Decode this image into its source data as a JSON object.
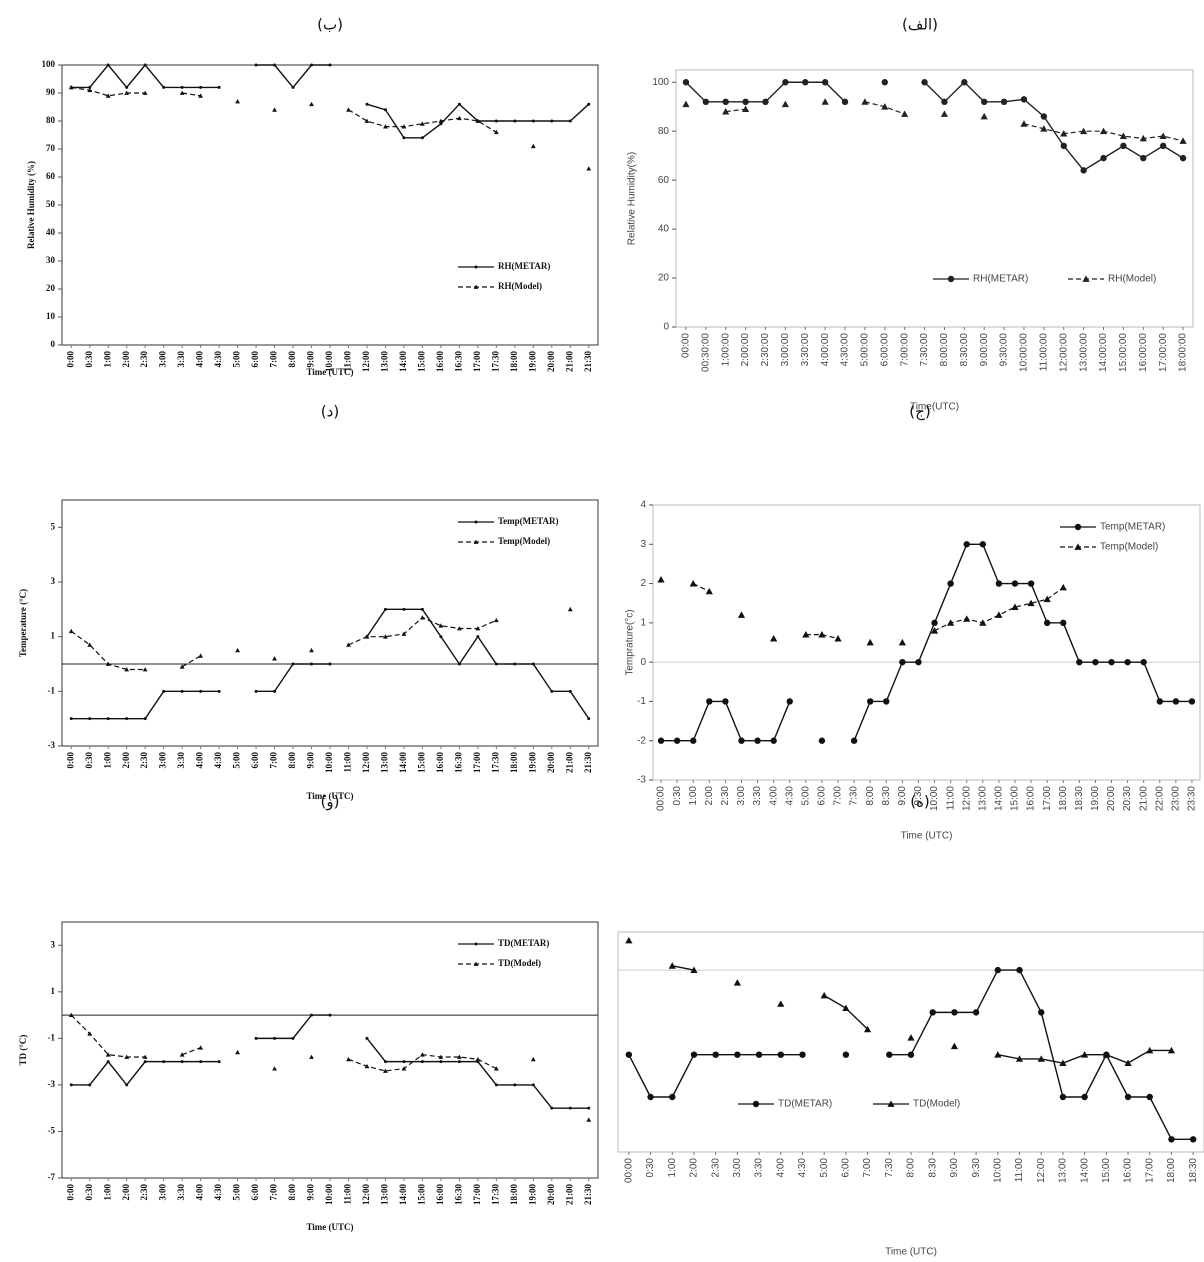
{
  "chart_data": [
    {
      "type": "line",
      "title": "(الف)",
      "xlabel": "Time(UTC)",
      "ylabel": "Relative Humidity(%)",
      "categories": [
        "00:00",
        "00:30:00",
        "1:00:00",
        "2:00:00",
        "2:30:00",
        "3:00:00",
        "3:30:00",
        "4:00:00",
        "4:30:00",
        "5:00:00",
        "6:00:00",
        "7:00:00",
        "7:30:00",
        "8:00:00",
        "8:30:00",
        "9:00:00",
        "9:30:00",
        "10:00:00",
        "11:00:00",
        "12:00:00",
        "13:00:00",
        "14:00:00",
        "15:00:00",
        "16:00:00",
        "17:00:00",
        "18:00:00"
      ],
      "series": [
        {
          "name": "RH(METAR)",
          "color": "#222222",
          "marker": "circle",
          "dash": false,
          "values": [
            100,
            92,
            92,
            92,
            92,
            100,
            100,
            100,
            92,
            null,
            100,
            null,
            100,
            92,
            100,
            92,
            92,
            93,
            86,
            74,
            64,
            69,
            74,
            69,
            74,
            69
          ]
        },
        {
          "name": "RH(Model)",
          "color": "#222222",
          "marker": "triangle",
          "dash": true,
          "values": [
            91,
            null,
            88,
            89,
            null,
            91,
            null,
            92,
            null,
            92,
            90,
            87,
            null,
            87,
            null,
            86,
            null,
            83,
            81,
            79,
            80,
            80,
            78,
            77,
            78,
            76
          ]
        }
      ],
      "ylim": [
        0,
        105
      ],
      "yticks": [
        0,
        20,
        40,
        60,
        80,
        100
      ],
      "legend": "lower right",
      "legend_layout": "horizontal",
      "zero_line": false
    },
    {
      "type": "line",
      "title": "(ب)",
      "xlabel": "Time (UTC)",
      "ylabel": "Relative Humidity  (%)",
      "categories": [
        "0:00",
        "0:30",
        "1:00",
        "2:00",
        "2:30",
        "3:00",
        "3:30",
        "4:00",
        "4:30",
        "5:00",
        "6:00",
        "7:00",
        "8:00",
        "9:00",
        "10:00",
        "11:00",
        "12:00",
        "13:00",
        "14:00",
        "15:00",
        "16:00",
        "16:30",
        "17:00",
        "17:30",
        "18:00",
        "19:00",
        "20:00",
        "21:00",
        "21:30"
      ],
      "series": [
        {
          "name": "RH(METAR)",
          "color": "#111111",
          "marker": "dot",
          "dash": false,
          "values": [
            92,
            92,
            100,
            92,
            100,
            92,
            92,
            92,
            92,
            null,
            100,
            100,
            92,
            100,
            100,
            null,
            86,
            84,
            74,
            74,
            79,
            86,
            80,
            80,
            80,
            80,
            80,
            80,
            86
          ]
        },
        {
          "name": "RH(Model)",
          "color": "#111111",
          "marker": "small-triangle",
          "dash": true,
          "values": [
            92,
            91,
            89,
            90,
            90,
            null,
            90,
            89,
            null,
            87,
            null,
            84,
            null,
            86,
            null,
            84,
            80,
            78,
            78,
            79,
            80,
            81,
            80,
            76,
            null,
            71,
            null,
            null,
            63
          ]
        }
      ],
      "ylim": [
        0,
        100
      ],
      "yticks": [
        0,
        10,
        20,
        30,
        40,
        50,
        60,
        70,
        80,
        90,
        100
      ],
      "legend": "lower right",
      "legend_layout": "vertical",
      "zero_line": false
    },
    {
      "type": "line",
      "title": "(ج)",
      "xlabel": "Time (UTC)",
      "ylabel": "Temprature(°c)",
      "categories": [
        "00:00",
        "0:30",
        "1:00",
        "2:00",
        "2:30",
        "3:00",
        "3:30",
        "4:00",
        "4:30",
        "5:00",
        "6:00",
        "7:00",
        "7:30",
        "8:00",
        "8:30",
        "9:00",
        "9:30",
        "10:00",
        "11:00",
        "12:00",
        "13:00",
        "14:00",
        "15:00",
        "16:00",
        "17:00",
        "18:00",
        "18:30",
        "19:00",
        "20:00",
        "20:30",
        "21:00",
        "22:00",
        "23:00",
        "23:30"
      ],
      "series": [
        {
          "name": "Temp(METAR)",
          "color": "#111111",
          "marker": "circle",
          "dash": false,
          "values": [
            -2,
            -2,
            -2,
            -1,
            -1,
            -2,
            -2,
            -2,
            -1,
            null,
            -2,
            null,
            -2,
            -1,
            -1,
            0,
            0,
            1,
            2,
            3,
            3,
            2,
            2,
            2,
            1,
            1,
            0,
            0,
            0,
            0,
            0,
            -1,
            -1,
            -1
          ]
        },
        {
          "name": "Temp(Model)",
          "color": "#111111",
          "marker": "triangle",
          "dash": true,
          "values": [
            2.1,
            null,
            2,
            1.8,
            null,
            1.2,
            null,
            0.6,
            null,
            0.7,
            0.7,
            0.6,
            null,
            0.5,
            null,
            0.5,
            null,
            0.8,
            1,
            1.1,
            1,
            1.2,
            1.4,
            1.5,
            1.6,
            1.9,
            null,
            null,
            null,
            null,
            null,
            null,
            null,
            null
          ]
        }
      ],
      "ylim": [
        -3,
        4
      ],
      "yticks": [
        -3,
        -2,
        -1,
        0,
        1,
        2,
        3,
        4
      ],
      "legend": "upper right",
      "legend_layout": "vertical",
      "zero_line": true
    },
    {
      "type": "line",
      "title": "(د)",
      "xlabel": "Time (UTC)",
      "ylabel": "Temperature  (°C)",
      "categories": [
        "0:00",
        "0:30",
        "1:00",
        "2:00",
        "2:30",
        "3:00",
        "3:30",
        "4:00",
        "4:30",
        "5:00",
        "6:00",
        "7:00",
        "8:00",
        "9:00",
        "10:00",
        "11:00",
        "12:00",
        "13:00",
        "14:00",
        "15:00",
        "16:00",
        "16:30",
        "17:00",
        "17:30",
        "18:00",
        "19:00",
        "20:00",
        "21:00",
        "21:30"
      ],
      "series": [
        {
          "name": "Temp(METAR)",
          "color": "#111111",
          "marker": "dot",
          "dash": false,
          "values": [
            -2,
            -2,
            -2,
            -2,
            -2,
            -1,
            -1,
            -1,
            -1,
            null,
            -1,
            -1,
            0,
            0,
            0,
            null,
            1,
            2,
            2,
            2,
            1,
            0,
            1,
            0,
            0,
            0,
            -1,
            -1,
            -2
          ]
        },
        {
          "name": "Temp(Model)",
          "color": "#111111",
          "marker": "small-triangle",
          "dash": true,
          "values": [
            1.2,
            0.7,
            0,
            -0.2,
            -0.2,
            null,
            -0.1,
            0.3,
            null,
            0.5,
            null,
            0.2,
            null,
            0.5,
            null,
            0.7,
            1,
            1,
            1.1,
            1.7,
            1.4,
            1.3,
            1.3,
            1.6,
            null,
            null,
            null,
            2,
            null
          ]
        }
      ],
      "ylim": [
        -3,
        6
      ],
      "yticks": [
        -3,
        -1,
        1,
        3,
        5
      ],
      "legend": "upper right",
      "legend_layout": "vertical",
      "zero_line": true
    },
    {
      "type": "line",
      "title": "(ه)",
      "xlabel": "Time (UTC)",
      "categories": [
        "00:00",
        "0:30",
        "1:00",
        "2:00",
        "2:30",
        "3:00",
        "3:30",
        "4:00",
        "4:30",
        "5:00",
        "6:00",
        "7:00",
        "7:30",
        "8:00",
        "8:30",
        "9:00",
        "9:30",
        "10:00",
        "11:00",
        "12:00",
        "13:00",
        "14:00",
        "15:00",
        "16:00",
        "17:00",
        "18:00",
        "18:30"
      ],
      "series": [
        {
          "name": "TD(METAR)",
          "color": "#111111",
          "marker": "circle",
          "dash": false,
          "values": [
            -2,
            -3,
            -3,
            -2,
            -2,
            -2,
            -2,
            -2,
            -2,
            null,
            -2,
            null,
            -2,
            -2,
            -1,
            -1,
            -1,
            0,
            0,
            -1,
            -3,
            -3,
            -2,
            -3,
            -3,
            -4,
            -4
          ]
        },
        {
          "name": "TD(Model)",
          "color": "#111111",
          "marker": "triangle",
          "dash": false,
          "values": [
            0.7,
            null,
            0.1,
            0,
            null,
            -0.3,
            null,
            -0.8,
            null,
            -0.6,
            -0.9,
            -1.4,
            null,
            -1.6,
            null,
            -1.8,
            null,
            -2,
            -2.1,
            -2.1,
            -2.2,
            -2,
            -2,
            -2.2,
            -1.9,
            -1.9,
            null
          ]
        }
      ],
      "ylim": [
        -4.3,
        0.9
      ],
      "legend": "lower left",
      "legend_layout": "horizontal",
      "zero_line": true
    },
    {
      "type": "line",
      "title": "(و)",
      "xlabel": "Time (UTC)",
      "ylabel": "TD (°C)",
      "categories": [
        "0:00",
        "0:30",
        "1:00",
        "2:00",
        "2:30",
        "3:00",
        "3:30",
        "4:00",
        "4:30",
        "5:00",
        "6:00",
        "7:00",
        "8:00",
        "9:00",
        "10:00",
        "11:00",
        "12:00",
        "13:00",
        "14:00",
        "15:00",
        "16:00",
        "16:30",
        "17:00",
        "17:30",
        "18:00",
        "19:00",
        "20:00",
        "21:00",
        "21:30"
      ],
      "series": [
        {
          "name": "TD(METAR)",
          "color": "#111111",
          "marker": "dot",
          "dash": false,
          "values": [
            -3,
            -3,
            -2,
            -3,
            -2,
            -2,
            -2,
            -2,
            -2,
            null,
            -1,
            -1,
            -1,
            0,
            0,
            null,
            -1,
            -2,
            -2,
            -2,
            -2,
            -2,
            -2,
            -3,
            -3,
            -3,
            -4,
            -4,
            -4
          ]
        },
        {
          "name": "TD(Model)",
          "color": "#111111",
          "marker": "small-triangle",
          "dash": true,
          "values": [
            0,
            -0.8,
            -1.7,
            -1.8,
            -1.8,
            null,
            -1.7,
            -1.4,
            null,
            -1.6,
            null,
            -2.3,
            null,
            -1.8,
            null,
            -1.9,
            -2.2,
            -2.4,
            -2.3,
            -1.7,
            -1.8,
            -1.8,
            -1.9,
            -2.3,
            null,
            -1.9,
            null,
            null,
            -4.5
          ]
        }
      ],
      "ylim": [
        -7,
        4
      ],
      "yticks": [
        -7,
        -5,
        -3,
        -1,
        1,
        3
      ],
      "legend": "upper right",
      "legend_layout": "vertical",
      "zero_line": true
    }
  ]
}
